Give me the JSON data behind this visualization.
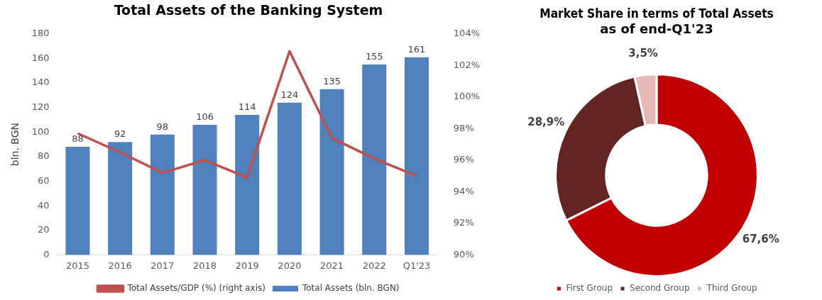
{
  "chart_data": [
    {
      "type": "bar",
      "title": "Total Assets of the Banking System",
      "ylabel": "bln. BGN",
      "categories": [
        "2015",
        "2016",
        "2017",
        "2018",
        "2019",
        "2020",
        "2021",
        "2022",
        "Q1'23"
      ],
      "series": [
        {
          "name": "Total Assets (bln. BGN)",
          "type": "bar",
          "color": "#4f81bd",
          "values": [
            88,
            92,
            98,
            106,
            114,
            124,
            135,
            155,
            161
          ],
          "value_labels": [
            "88",
            "92",
            "98",
            "106",
            "114",
            "124",
            "135",
            "155",
            "161"
          ]
        },
        {
          "name": "Total Assets/GDP (%) (right axis)",
          "type": "line",
          "axis": "y2",
          "color": "#c0504d",
          "values": [
            97.7,
            96.5,
            95.2,
            96.0,
            94.9,
            102.9,
            97.4,
            96.1,
            95.0
          ]
        }
      ],
      "ylim": [
        0,
        180
      ],
      "yticks": [
        0,
        20,
        40,
        60,
        80,
        100,
        120,
        140,
        160,
        180
      ],
      "y2lim": [
        90,
        104
      ],
      "y2ticks": [
        {
          "value": 90,
          "label": "90%"
        },
        {
          "value": 92,
          "label": "92%"
        },
        {
          "value": 94,
          "label": "94%"
        },
        {
          "value": 96,
          "label": "96%"
        },
        {
          "value": 98,
          "label": "98%"
        },
        {
          "value": 100,
          "label": "100%"
        },
        {
          "value": 102,
          "label": "102%"
        },
        {
          "value": 104,
          "label": "104%"
        }
      ],
      "grid": false,
      "legend": "bottom",
      "marker": "none",
      "line_style": "solid"
    },
    {
      "type": "donut",
      "title": "Market Share in terms of Total Assets as of end-Q1'23",
      "categories": [
        "First Group",
        "Second Group",
        "Third Group"
      ],
      "values": [
        67.6,
        28.9,
        3.5
      ],
      "colors": [
        "#c00000",
        "#632523",
        "#e6b9b8"
      ],
      "value_labels": [
        "67,6%",
        "28,9%",
        "3,5%"
      ],
      "legend": "bottom"
    }
  ]
}
